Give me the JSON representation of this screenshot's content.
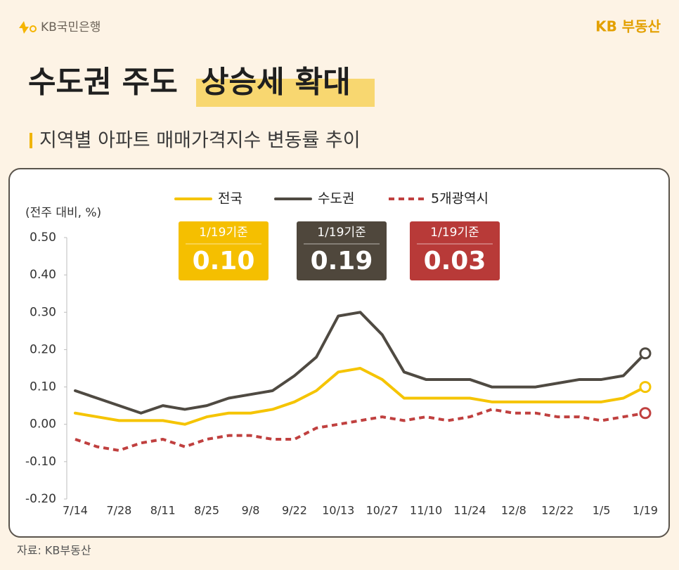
{
  "header": {
    "brand": "KB국민은행",
    "site": "KB 부동산"
  },
  "title": {
    "main": "수도권 주도",
    "highlight": "상승세 확대"
  },
  "subtitle": "지역별 아파트 매매가격지수 변동률 추이",
  "source": "자료: KB부동산",
  "chart_data": {
    "type": "line",
    "y_label": "(전주 대비, %)",
    "categories": [
      "7/14",
      null,
      "7/28",
      null,
      "8/11",
      null,
      "8/25",
      null,
      "9/8",
      null,
      "9/22",
      null,
      "10/13",
      null,
      "10/27",
      null,
      "11/10",
      null,
      "11/24",
      null,
      "12/8",
      null,
      "12/22",
      null,
      "1/5",
      null,
      "1/19"
    ],
    "ylim": [
      -0.2,
      0.5
    ],
    "yticks": [
      {
        "value": 0.5,
        "label": "0.50"
      },
      {
        "value": 0.4,
        "label": "0.40"
      },
      {
        "value": 0.3,
        "label": "0.30"
      },
      {
        "value": 0.2,
        "label": "0.20"
      },
      {
        "value": 0.1,
        "label": "0.10"
      },
      {
        "value": 0,
        "label": "0.00"
      },
      {
        "value": -0.1,
        "label": "-0.10"
      },
      {
        "value": -0.2,
        "label": "-0.20"
      }
    ],
    "grid": false,
    "series": [
      {
        "name": "전국",
        "color": "#f5c400",
        "dash": false,
        "values": [
          0.03,
          0.02,
          0.01,
          0.01,
          0.01,
          0.0,
          0.02,
          0.03,
          0.03,
          0.04,
          0.06,
          0.09,
          0.14,
          0.15,
          0.12,
          0.07,
          0.07,
          0.07,
          0.07,
          0.06,
          0.06,
          0.06,
          0.06,
          0.06,
          0.06,
          0.07,
          0.1
        ],
        "badge": {
          "caption": "1/19기준",
          "value": 0.1,
          "label": "0.10",
          "color": "#f5bf00"
        }
      },
      {
        "name": "수도권",
        "color": "#4f4a42",
        "dash": false,
        "values": [
          0.09,
          0.07,
          0.05,
          0.03,
          0.05,
          0.04,
          0.05,
          0.07,
          0.08,
          0.09,
          0.13,
          0.18,
          0.29,
          0.3,
          0.24,
          0.14,
          0.12,
          0.12,
          0.12,
          0.1,
          0.1,
          0.1,
          0.11,
          0.12,
          0.12,
          0.13,
          0.19
        ],
        "badge": {
          "caption": "1/19기준",
          "value": 0.19,
          "label": "0.19",
          "color": "#4f473c"
        }
      },
      {
        "name": "5개광역시",
        "color": "#c0403f",
        "dash": true,
        "values": [
          -0.04,
          -0.06,
          -0.07,
          -0.05,
          -0.04,
          -0.06,
          -0.04,
          -0.03,
          -0.03,
          -0.04,
          -0.04,
          -0.01,
          0.0,
          0.01,
          0.02,
          0.01,
          0.02,
          0.01,
          0.02,
          0.04,
          0.03,
          0.03,
          0.02,
          0.02,
          0.01,
          0.02,
          0.03
        ],
        "badge": {
          "caption": "1/19기준",
          "value": 0.03,
          "label": "0.03",
          "color": "#b83a38"
        }
      }
    ]
  }
}
